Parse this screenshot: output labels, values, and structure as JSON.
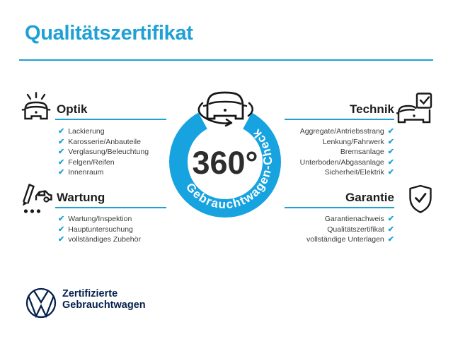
{
  "page": {
    "title": "Qualitätszertifikat"
  },
  "colors": {
    "accent_blue": "#1fa0d6",
    "ring_blue": "#17a3e0",
    "brand_navy": "#05204d",
    "text_dark": "#1d1d1d"
  },
  "check_glyph": "✔",
  "center": {
    "value": "360°",
    "ring_label": "Gebrauchtwagen-Check",
    "icon": "car-rotation-icon"
  },
  "sections": [
    {
      "id": "optik",
      "label": "Optik",
      "icon": "car-shine-icon",
      "side": "left",
      "items": [
        "Lackierung",
        "Karosserie/Anbauteile",
        "Verglasung/Beleuchtung",
        "Felgen/Reifen",
        "Innenraum"
      ]
    },
    {
      "id": "technik",
      "label": "Technik",
      "icon": "car-checkbox-icon",
      "side": "right",
      "items": [
        "Aggregate/Antriebsstrang",
        "Lenkung/Fahrwerk",
        "Bremsanlage",
        "Unterboden/Abgasanlage",
        "Sicherheit/Elektrik"
      ]
    },
    {
      "id": "wartung",
      "label": "Wartung",
      "icon": "pen-car-icon",
      "side": "left",
      "items": [
        "Wartung/Inspektion",
        "Hauptuntersuchung",
        "vollständiges Zubehör"
      ]
    },
    {
      "id": "garantie",
      "label": "Garantie",
      "icon": "shield-check-icon",
      "side": "right",
      "items": [
        "Garantienachweis",
        "Qualitätszertifikat",
        "vollständige Unterlagen"
      ]
    }
  ],
  "footer": {
    "logo": "vw-logo",
    "brand_line1": "Zertifizierte",
    "brand_line2": "Gebrauchtwagen"
  }
}
